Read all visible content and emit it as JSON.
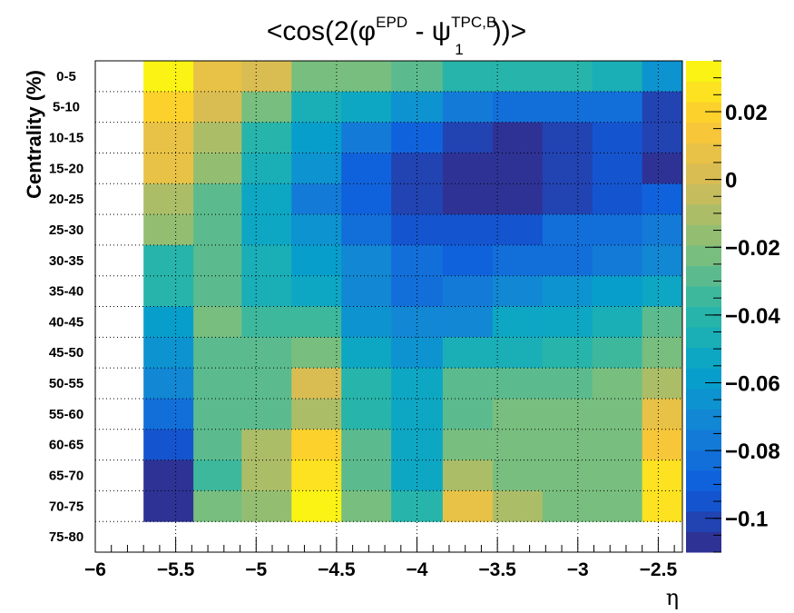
{
  "chart_data": {
    "type": "heatmap",
    "title": {
      "prefix": "<cos(2(φ",
      "sup1": "EPD",
      "middle": " - ψ",
      "sup2": "TPC,B",
      "sub2": "1",
      "suffix": "))>"
    },
    "xlabel": "η",
    "ylabel": "Centrality (%)",
    "xlim": [
      -6,
      -2.35
    ],
    "x_ticks": [
      "−6",
      "−5.5",
      "−5",
      "−4.5",
      "−4",
      "−3.5",
      "−3",
      "−2.5"
    ],
    "x_tick_values": [
      -6,
      -5.5,
      -5,
      -4.5,
      -4,
      -3.5,
      -3,
      -2.5
    ],
    "x_bin_edges": [
      -5.7,
      -5.39,
      -5.09,
      -4.78,
      -4.47,
      -4.16,
      -3.84,
      -3.53,
      -3.22,
      -2.91,
      -2.6,
      -2.35
    ],
    "categories": [
      "0-5",
      "5-10",
      "10-15",
      "15-20",
      "20-25",
      "25-30",
      "30-35",
      "35-40",
      "40-45",
      "45-50",
      "50-55",
      "55-60",
      "60-65",
      "65-70",
      "70-75",
      "75-80"
    ],
    "values": [
      [
        0.033,
        0.005,
        0.002,
        -0.025,
        -0.022,
        -0.028,
        -0.043,
        -0.043,
        -0.043,
        -0.048,
        -0.065
      ],
      [
        0.018,
        0.0,
        -0.02,
        -0.045,
        -0.05,
        -0.065,
        -0.075,
        -0.08,
        -0.082,
        -0.085,
        -0.098
      ],
      [
        0.01,
        -0.013,
        -0.04,
        -0.06,
        -0.075,
        -0.09,
        -0.103,
        -0.105,
        -0.102,
        -0.095,
        -0.102
      ],
      [
        0.005,
        -0.018,
        -0.045,
        -0.062,
        -0.09,
        -0.098,
        -0.115,
        -0.115,
        -0.102,
        -0.095,
        -0.105
      ],
      [
        -0.01,
        -0.03,
        -0.05,
        -0.075,
        -0.09,
        -0.1,
        -0.11,
        -0.112,
        -0.1,
        -0.095,
        -0.09
      ],
      [
        -0.018,
        -0.03,
        -0.05,
        -0.065,
        -0.085,
        -0.095,
        -0.095,
        -0.092,
        -0.085,
        -0.08,
        -0.075
      ],
      [
        -0.038,
        -0.03,
        -0.048,
        -0.058,
        -0.072,
        -0.082,
        -0.09,
        -0.085,
        -0.08,
        -0.075,
        -0.068
      ],
      [
        -0.04,
        -0.03,
        -0.045,
        -0.055,
        -0.07,
        -0.085,
        -0.078,
        -0.07,
        -0.065,
        -0.06,
        -0.052
      ],
      [
        -0.06,
        -0.025,
        -0.035,
        -0.035,
        -0.065,
        -0.072,
        -0.068,
        -0.055,
        -0.05,
        -0.045,
        -0.03
      ],
      [
        -0.065,
        -0.03,
        -0.03,
        -0.02,
        -0.05,
        -0.065,
        -0.048,
        -0.045,
        -0.04,
        -0.035,
        -0.02
      ],
      [
        -0.07,
        -0.03,
        -0.03,
        0.0,
        -0.04,
        -0.055,
        -0.03,
        -0.03,
        -0.03,
        -0.025,
        -0.01
      ],
      [
        -0.08,
        -0.03,
        -0.03,
        -0.01,
        -0.04,
        -0.05,
        -0.03,
        -0.025,
        -0.02,
        -0.02,
        0.01
      ],
      [
        -0.095,
        -0.03,
        -0.01,
        0.02,
        -0.03,
        -0.05,
        -0.02,
        -0.02,
        -0.02,
        -0.02,
        0.015
      ],
      [
        -0.105,
        -0.035,
        -0.01,
        0.028,
        -0.03,
        -0.05,
        -0.01,
        -0.02,
        -0.02,
        -0.02,
        0.025
      ],
      [
        -0.105,
        -0.02,
        -0.015,
        0.033,
        -0.02,
        -0.04,
        0.005,
        -0.01,
        -0.02,
        -0.02,
        0.025
      ],
      [
        null,
        null,
        null,
        null,
        null,
        null,
        null,
        null,
        null,
        null,
        null
      ]
    ],
    "zlim": [
      -0.11,
      0.035
    ],
    "z_ticks": [
      "0.02",
      "0",
      "−0.02",
      "−0.04",
      "−0.06",
      "−0.08",
      "−0.1"
    ],
    "z_tick_values": [
      0.02,
      0,
      -0.02,
      -0.04,
      -0.06,
      -0.08,
      -0.1
    ],
    "grid": true,
    "colorscale": "parula",
    "colors": [
      "#352a87",
      "#0f5cdd",
      "#1481d6",
      "#06a4ca",
      "#2eb7a4",
      "#87bf77",
      "#d1bb59",
      "#fec832",
      "#f9fb0e"
    ]
  }
}
